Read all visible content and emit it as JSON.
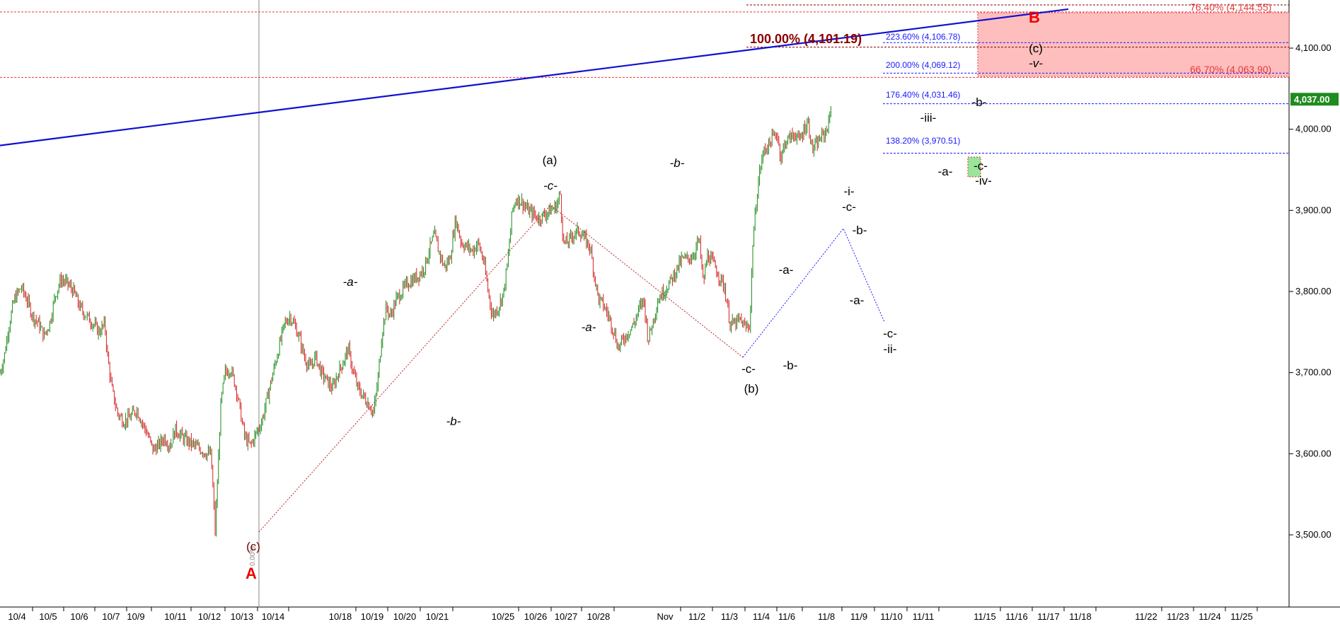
{
  "chart_data": {
    "type": "candlestick",
    "ylim": [
      3420,
      4160
    ],
    "y_ticks": [
      "3,500.00",
      "3,600.00",
      "3,700.00",
      "3,800.00",
      "3,900.00",
      "4,000.00",
      "4,100.00"
    ],
    "y_tick_values": [
      3500,
      3600,
      3700,
      3800,
      3900,
      4000,
      4100
    ],
    "x_ticks": [
      "10/4",
      "10/5",
      "10/6",
      "10/7",
      "10/9",
      "10/11",
      "10/12",
      "10/13",
      "10/14",
      "10/18",
      "10/19",
      "10/20",
      "10/21",
      "10/25",
      "10/26",
      "10/27",
      "10/28",
      "Nov",
      "11/2",
      "11/3",
      "11/4",
      "11/6",
      "11/8",
      "11/9",
      "11/10",
      "11/11",
      "11/15",
      "11/16",
      "11/17",
      "11/18",
      "11/22",
      "11/23",
      "11/24",
      "11/25"
    ],
    "last_price": "4,037.00",
    "last_price_value": 4037,
    "colors": {
      "up": "#1a8a1a",
      "down": "#d62020",
      "trendline": "#1010d0",
      "fib_red": "#e43a3a",
      "fib_blue": "#1a1aff",
      "zone": "#ffb3b3",
      "price_tag": "#1e8c1e"
    },
    "price_path": [
      [
        0,
        3700
      ],
      [
        6,
        3720
      ],
      [
        12,
        3755
      ],
      [
        20,
        3790
      ],
      [
        30,
        3805
      ],
      [
        38,
        3790
      ],
      [
        46,
        3770
      ],
      [
        55,
        3760
      ],
      [
        62,
        3745
      ],
      [
        70,
        3760
      ],
      [
        78,
        3795
      ],
      [
        86,
        3815
      ],
      [
        95,
        3810
      ],
      [
        104,
        3800
      ],
      [
        113,
        3780
      ],
      [
        122,
        3770
      ],
      [
        132,
        3760
      ],
      [
        140,
        3750
      ],
      [
        148,
        3760
      ],
      [
        152,
        3720
      ],
      [
        158,
        3680
      ],
      [
        166,
        3650
      ],
      [
        175,
        3640
      ],
      [
        184,
        3645
      ],
      [
        193,
        3655
      ],
      [
        200,
        3640
      ],
      [
        208,
        3625
      ],
      [
        216,
        3605
      ],
      [
        224,
        3610
      ],
      [
        232,
        3620
      ],
      [
        240,
        3610
      ],
      [
        248,
        3630
      ],
      [
        258,
        3620
      ],
      [
        266,
        3615
      ],
      [
        275,
        3610
      ],
      [
        284,
        3605
      ],
      [
        292,
        3600
      ],
      [
        298,
        3600
      ],
      [
        302,
        3540
      ],
      [
        304,
        3505
      ],
      [
        307,
        3560
      ],
      [
        312,
        3660
      ],
      [
        318,
        3700
      ],
      [
        326,
        3705
      ],
      [
        334,
        3680
      ],
      [
        340,
        3650
      ],
      [
        346,
        3620
      ],
      [
        354,
        3610
      ],
      [
        362,
        3625
      ],
      [
        370,
        3640
      ],
      [
        378,
        3670
      ],
      [
        386,
        3700
      ],
      [
        394,
        3730
      ],
      [
        402,
        3760
      ],
      [
        410,
        3770
      ],
      [
        418,
        3755
      ],
      [
        424,
        3740
      ],
      [
        430,
        3720
      ],
      [
        438,
        3705
      ],
      [
        446,
        3720
      ],
      [
        454,
        3700
      ],
      [
        462,
        3690
      ],
      [
        470,
        3680
      ],
      [
        478,
        3700
      ],
      [
        486,
        3715
      ],
      [
        492,
        3730
      ],
      [
        498,
        3705
      ],
      [
        506,
        3680
      ],
      [
        514,
        3670
      ],
      [
        522,
        3660
      ],
      [
        528,
        3650
      ],
      [
        534,
        3690
      ],
      [
        540,
        3750
      ],
      [
        546,
        3780
      ],
      [
        552,
        3770
      ],
      [
        560,
        3790
      ],
      [
        568,
        3800
      ],
      [
        576,
        3810
      ],
      [
        584,
        3815
      ],
      [
        592,
        3820
      ],
      [
        600,
        3830
      ],
      [
        608,
        3855
      ],
      [
        614,
        3870
      ],
      [
        620,
        3850
      ],
      [
        628,
        3830
      ],
      [
        636,
        3840
      ],
      [
        644,
        3890
      ],
      [
        652,
        3860
      ],
      [
        660,
        3855
      ],
      [
        668,
        3850
      ],
      [
        676,
        3860
      ],
      [
        684,
        3835
      ],
      [
        690,
        3800
      ],
      [
        696,
        3770
      ],
      [
        704,
        3780
      ],
      [
        712,
        3800
      ],
      [
        718,
        3840
      ],
      [
        724,
        3900
      ],
      [
        730,
        3915
      ],
      [
        738,
        3910
      ],
      [
        746,
        3900
      ],
      [
        754,
        3895
      ],
      [
        762,
        3890
      ],
      [
        770,
        3895
      ],
      [
        778,
        3900
      ],
      [
        786,
        3905
      ],
      [
        792,
        3920
      ],
      [
        796,
        3860
      ],
      [
        802,
        3860
      ],
      [
        810,
        3870
      ],
      [
        818,
        3875
      ],
      [
        826,
        3865
      ],
      [
        834,
        3855
      ],
      [
        840,
        3820
      ],
      [
        846,
        3790
      ],
      [
        852,
        3785
      ],
      [
        860,
        3770
      ],
      [
        868,
        3750
      ],
      [
        874,
        3730
      ],
      [
        880,
        3740
      ],
      [
        888,
        3750
      ],
      [
        896,
        3760
      ],
      [
        904,
        3780
      ],
      [
        910,
        3790
      ],
      [
        916,
        3740
      ],
      [
        922,
        3760
      ],
      [
        930,
        3790
      ],
      [
        938,
        3800
      ],
      [
        946,
        3810
      ],
      [
        952,
        3820
      ],
      [
        958,
        3830
      ],
      [
        964,
        3840
      ],
      [
        972,
        3840
      ],
      [
        980,
        3845
      ],
      [
        988,
        3865
      ],
      [
        994,
        3810
      ],
      [
        1000,
        3845
      ],
      [
        1008,
        3835
      ],
      [
        1016,
        3820
      ],
      [
        1024,
        3805
      ],
      [
        1032,
        3760
      ],
      [
        1038,
        3760
      ],
      [
        1046,
        3765
      ],
      [
        1054,
        3755
      ],
      [
        1060,
        3760
      ],
      [
        1064,
        3860
      ],
      [
        1070,
        3920
      ],
      [
        1074,
        3950
      ],
      [
        1080,
        3975
      ],
      [
        1086,
        3980
      ],
      [
        1092,
        3990
      ],
      [
        1098,
        3995
      ],
      [
        1104,
        3965
      ],
      [
        1110,
        3985
      ],
      [
        1118,
        3990
      ],
      [
        1124,
        3995
      ],
      [
        1130,
        3985
      ],
      [
        1136,
        4000
      ],
      [
        1142,
        4010
      ],
      [
        1148,
        3975
      ],
      [
        1154,
        3980
      ],
      [
        1160,
        3990
      ],
      [
        1166,
        3995
      ],
      [
        1172,
        4010
      ],
      [
        1176,
        4040
      ]
    ],
    "trendlines": [
      {
        "name": "upper-channel",
        "from": [
          0,
          3980
        ],
        "to": [
          1510,
          4148
        ]
      }
    ],
    "fib_levels": [
      {
        "label": "76.40% (4,144.55)",
        "value": 4144.55,
        "color": "red"
      },
      {
        "label": "66.70% (4,063.90)",
        "value": 4063.9,
        "color": "red"
      },
      {
        "label": "223.60% (4,106.78)",
        "value": 4106.78,
        "color": "blue"
      },
      {
        "label": "200.00% (4,069.12)",
        "value": 4069.12,
        "color": "blue"
      },
      {
        "label": "176.40% (4,031.46)",
        "value": 4031.46,
        "color": "blue"
      },
      {
        "label": "138.20% (3,970.51)",
        "value": 3970.51,
        "color": "blue"
      },
      {
        "label": "100.00% (4,101.19)",
        "value": 4101.19,
        "color": "dark"
      }
    ],
    "wave_labels": [
      {
        "text": "(c)",
        "style": "dark"
      },
      {
        "text": "A",
        "style": "red"
      },
      {
        "text": "-a-",
        "style": "italic"
      },
      {
        "text": "-b-",
        "style": "italic"
      },
      {
        "text": "(a)",
        "style": "normal"
      },
      {
        "text": "-c-",
        "style": "italic"
      },
      {
        "text": "-a-",
        "style": "italic"
      },
      {
        "text": "-b-",
        "style": "italic"
      },
      {
        "text": "-c-",
        "style": "normal"
      },
      {
        "text": "(b)",
        "style": "normal"
      },
      {
        "text": "-a-",
        "style": "normal"
      },
      {
        "text": "-b-",
        "style": "normal"
      },
      {
        "text": "-i-",
        "style": "normal"
      },
      {
        "text": "-c-",
        "style": "normal"
      },
      {
        "text": "-b-",
        "style": "normal"
      },
      {
        "text": "-a-",
        "style": "normal"
      },
      {
        "text": "-c-",
        "style": "normal"
      },
      {
        "text": "-ii-",
        "style": "normal"
      },
      {
        "text": "-iii-",
        "style": "normal"
      },
      {
        "text": "-a-",
        "style": "normal"
      },
      {
        "text": "-b-",
        "style": "normal"
      },
      {
        "text": "-c-",
        "style": "normal"
      },
      {
        "text": "-iv-",
        "style": "normal"
      },
      {
        "text": "(c)",
        "style": "normal"
      },
      {
        "text": "-v-",
        "style": "italic"
      },
      {
        "text": "B",
        "style": "red"
      }
    ],
    "vertical_marker_label": "0.00%"
  }
}
